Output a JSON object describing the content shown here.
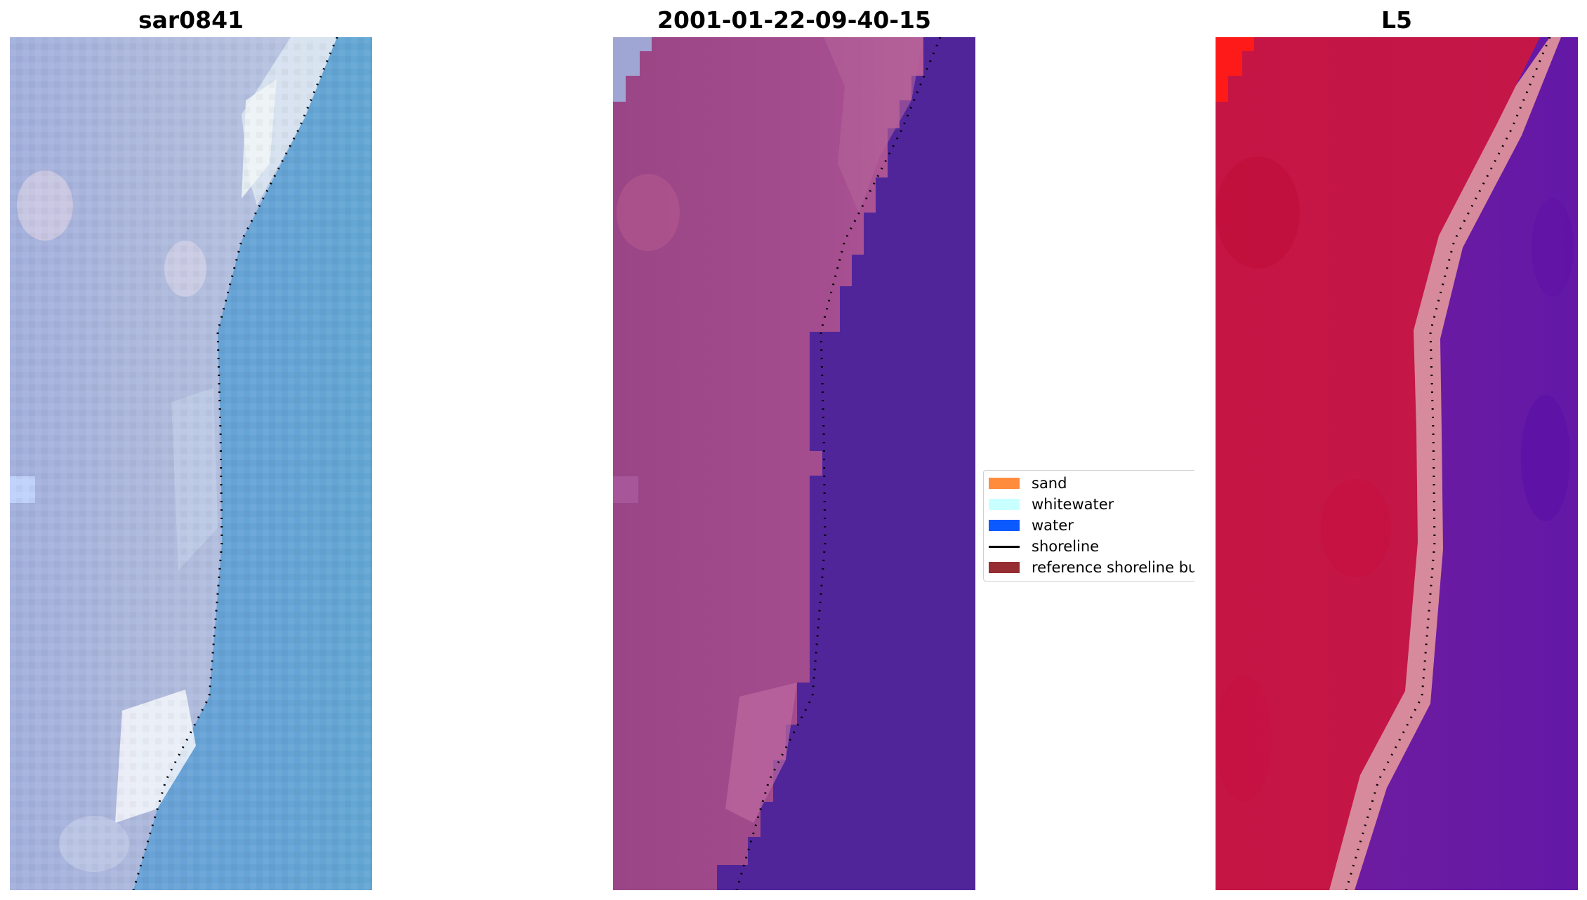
{
  "panels": [
    {
      "title": "sar0841",
      "image": "rgb-composite"
    },
    {
      "title": "2001-01-22-09-40-15",
      "image": "classified-image"
    },
    {
      "title": "L5",
      "image": "water-index-image"
    }
  ],
  "legend": {
    "items": [
      {
        "label": "sand",
        "color": "#ff8c3c",
        "kind": "patch"
      },
      {
        "label": "whitewater",
        "color": "#c8ffff",
        "kind": "patch"
      },
      {
        "label": "water",
        "color": "#0a5aff",
        "kind": "patch"
      },
      {
        "label": "shoreline",
        "color": "#000000",
        "kind": "line"
      },
      {
        "label": "reference shoreline buffer",
        "color": "#962d33",
        "kind": "patch"
      }
    ]
  },
  "colors": {
    "land_rgb": "#a9b3d8",
    "sea_rgb": "#6aa4d6",
    "land_classified": "#a24c8e",
    "sea_classified": "#50259a",
    "land_index": "#c41745",
    "sea_index": "#6c1c9c",
    "buffer_index": "#d68a9c"
  }
}
